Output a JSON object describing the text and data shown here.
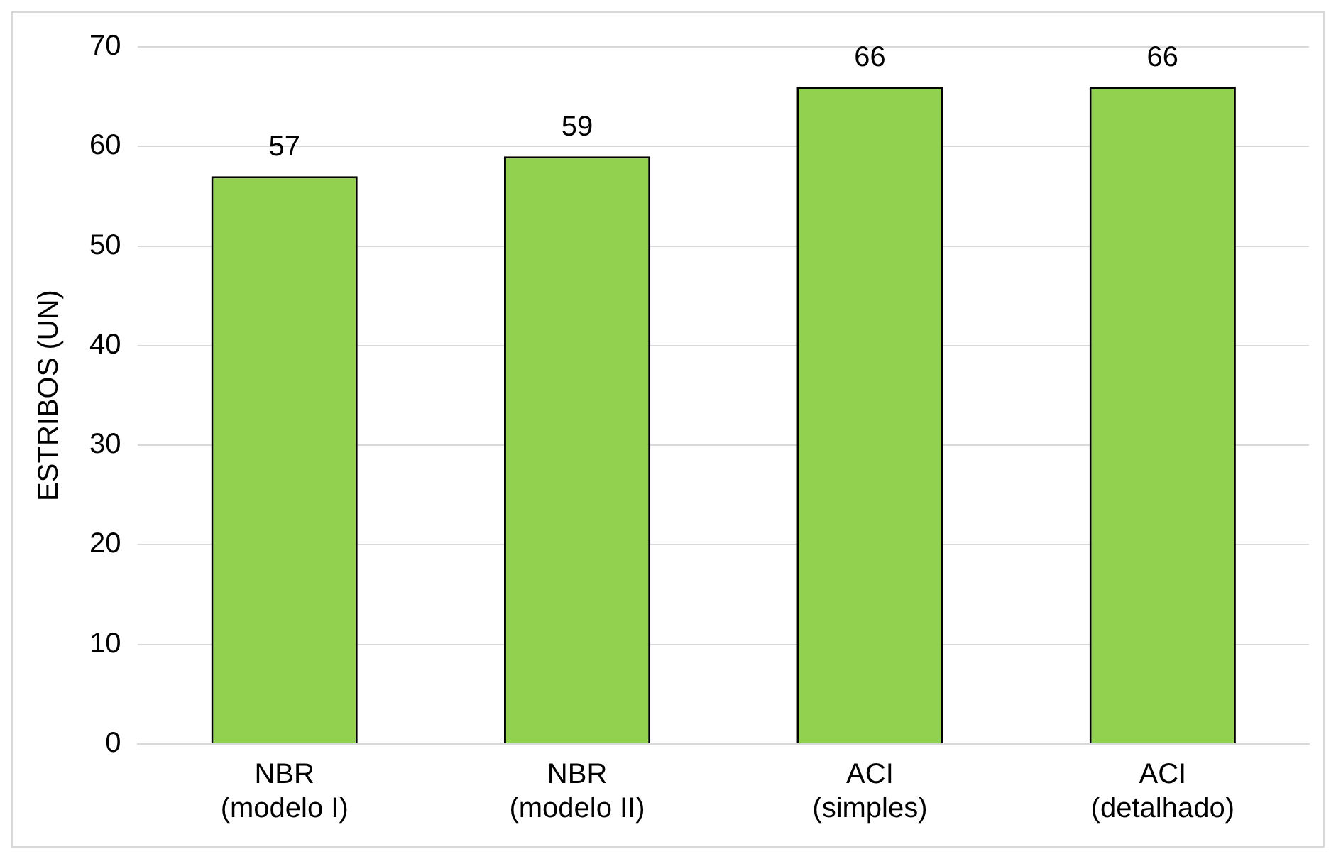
{
  "chart_data": {
    "type": "bar",
    "ylabel": "ESTRIBOS (UN)",
    "categories": [
      "NBR\n(modelo I)",
      "NBR\n(modelo II)",
      "ACI\n(simples)",
      "ACI\n(detalhado)"
    ],
    "values": [
      57,
      59,
      66,
      66
    ],
    "color": "#92d050",
    "ylim": [
      0,
      70
    ],
    "yticks": [
      0,
      10,
      20,
      30,
      40,
      50,
      60,
      70
    ],
    "grid": "y",
    "data_labels": true
  }
}
